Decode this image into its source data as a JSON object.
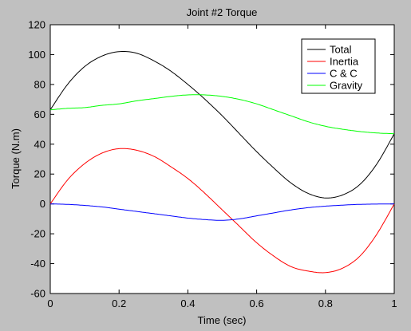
{
  "chart_data": {
    "type": "line",
    "title": "Joint #2 Torque",
    "xlabel": "Time (sec)",
    "ylabel": "Torque (N.m)",
    "xlim": [
      0,
      1
    ],
    "ylim": [
      -60,
      120
    ],
    "x_ticks": [
      "0",
      "0.2",
      "0.4",
      "0.6",
      "0.8",
      "1"
    ],
    "y_ticks": [
      "120",
      "100",
      "80",
      "60",
      "40",
      "20",
      "0",
      "-20",
      "-40",
      "-60"
    ],
    "grid": false,
    "legend_position": "top-right",
    "x": [
      0,
      0.05,
      0.1,
      0.15,
      0.2,
      0.25,
      0.3,
      0.35,
      0.4,
      0.45,
      0.5,
      0.55,
      0.6,
      0.65,
      0.7,
      0.75,
      0.8,
      0.85,
      0.9,
      0.95,
      1.0
    ],
    "series": [
      {
        "name": "Total",
        "color": "#000000",
        "values": [
          63,
          80,
          92,
          99,
          102,
          101,
          96,
          89,
          80,
          70,
          59,
          47,
          35,
          24,
          14,
          7,
          4,
          6,
          13,
          27,
          47
        ]
      },
      {
        "name": "Inertia",
        "color": "#ff0000",
        "values": [
          0,
          16,
          27,
          34,
          37,
          36,
          32,
          25,
          17,
          7,
          -4,
          -15,
          -26,
          -35,
          -42,
          -45,
          -46,
          -43,
          -35,
          -20,
          0
        ]
      },
      {
        "name": "C & C",
        "color": "#0000ff",
        "values": [
          0,
          -0.3,
          -1,
          -2,
          -3.5,
          -5,
          -6.5,
          -8,
          -9.5,
          -10.5,
          -11,
          -10,
          -8,
          -6,
          -4,
          -2.5,
          -1.5,
          -0.8,
          -0.3,
          -0.1,
          0
        ]
      },
      {
        "name": "Gravity",
        "color": "#00ff00",
        "values": [
          63,
          64,
          64.5,
          66,
          67,
          69,
          70.5,
          72,
          73,
          73,
          72,
          70,
          67,
          63,
          59,
          55,
          52,
          50,
          48.5,
          47.5,
          47
        ]
      }
    ]
  }
}
